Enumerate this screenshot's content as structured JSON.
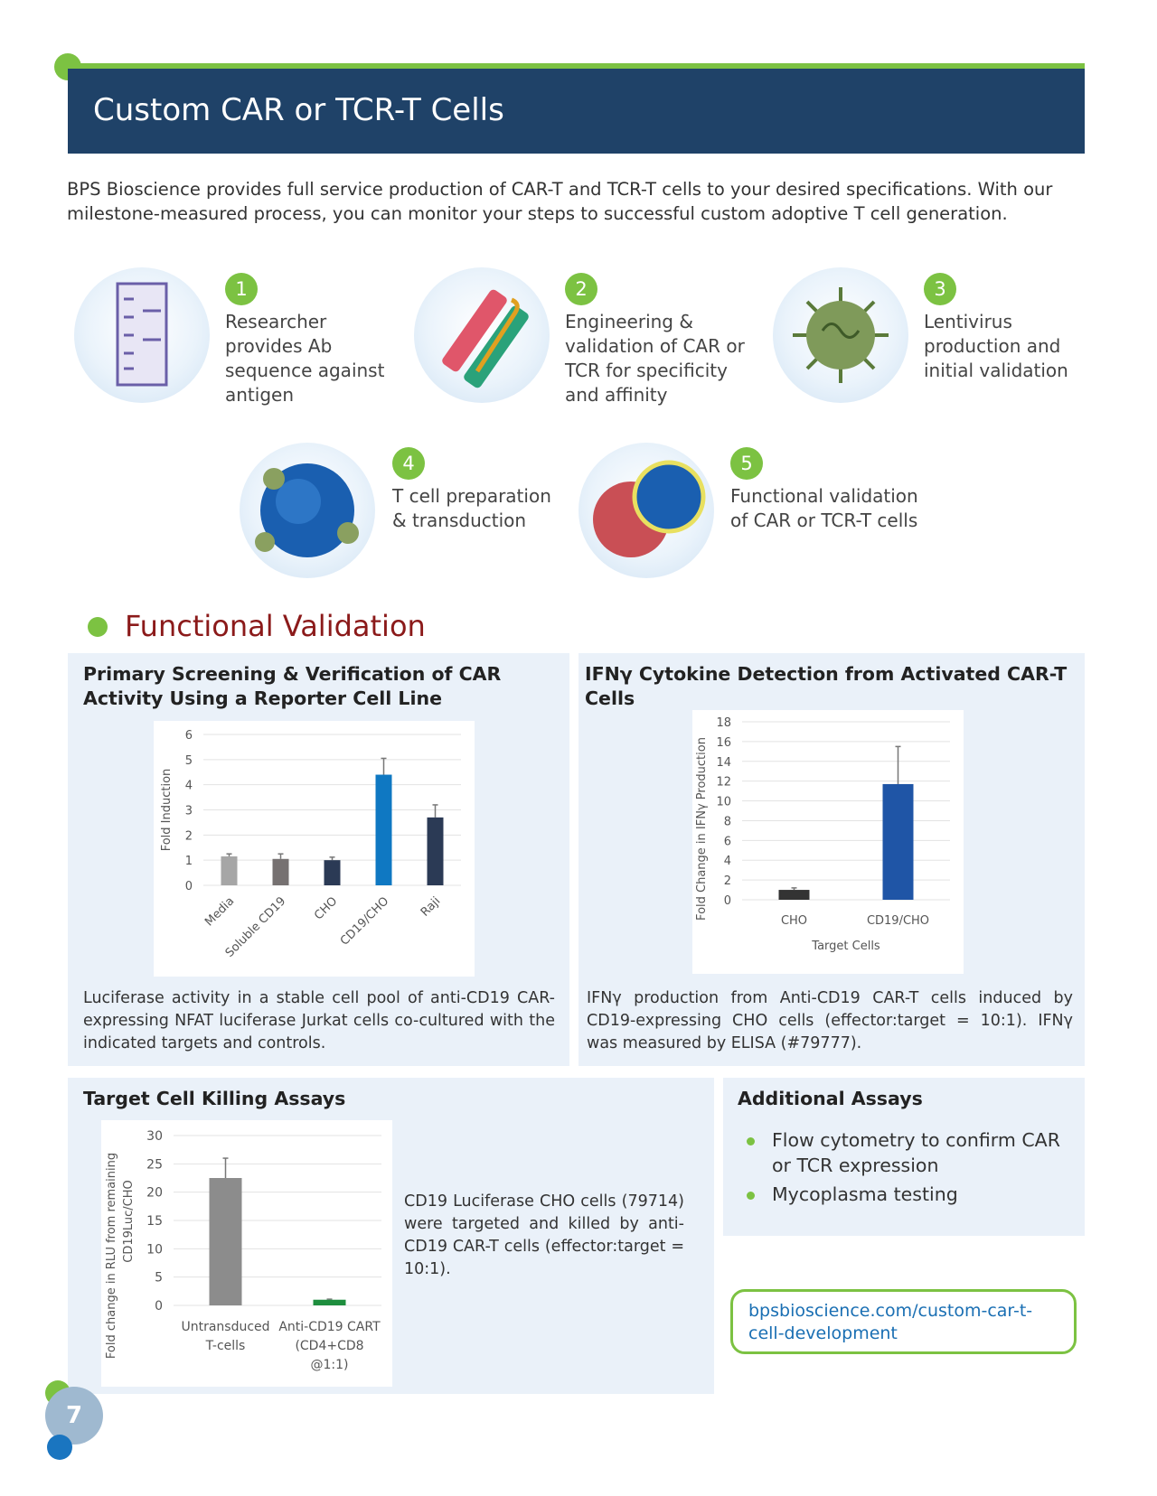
{
  "header": {
    "title": "Custom CAR or TCR-T Cells"
  },
  "intro": "BPS Bioscience provides full service production of CAR-T and TCR-T cells to your desired specifications. With our milestone-measured process, you can monitor your steps to successful custom adoptive T cell generation.",
  "steps": [
    {
      "num": "1",
      "text": "Researcher provides Ab sequence against antigen",
      "icon": "gel-icon"
    },
    {
      "num": "2",
      "text": "Engineering & validation of CAR or TCR for specificity and affinity",
      "icon": "receptor-icon"
    },
    {
      "num": "3",
      "text": "Lentivirus production and initial validation",
      "icon": "virus-icon"
    },
    {
      "num": "4",
      "text": "T cell preparation & transduction",
      "icon": "t-cell-icon"
    },
    {
      "num": "5",
      "text": "Functional validation of CAR or TCR-T cells",
      "icon": "cell-killing-icon"
    }
  ],
  "section_title": "Functional Validation",
  "panels": {
    "reporter": {
      "title": "Primary Screening & Verification of CAR Activity Using a Reporter Cell Line",
      "caption": "Luciferase activity in a stable cell pool of anti-CD19 CAR-expressing NFAT luciferase Jurkat cells co-cultured with the indicated targets and controls."
    },
    "ifng": {
      "title": "IFNγ Cytokine Detection from Activated CAR-T Cells",
      "caption": "IFNγ production from Anti-CD19 CAR-T cells induced by CD19-expressing CHO cells (effector:target = 10:1). IFNγ was measured by ELISA (#79777)."
    },
    "killing": {
      "title": "Target Cell Killing Assays",
      "caption": "CD19 Luciferase CHO cells (79714) were targeted and killed by anti-CD19 CAR-T cells (effector:target = 10:1)."
    },
    "additional": {
      "title": "Additional Assays",
      "items": [
        "Flow cytometry to confirm CAR or TCR expression",
        "Mycoplasma testing"
      ]
    }
  },
  "link": "bpsbioscience.com/custom-car-t-cell-development",
  "page_number": "7",
  "colors": {
    "header": "#1f4268",
    "accent_green": "#7cc242",
    "section_title": "#8b1a1a",
    "panel": "#eaf1f9"
  },
  "chart_data": [
    {
      "type": "bar",
      "title": "",
      "xlabel": "",
      "ylabel": "Fold Induction",
      "ylim": [
        0,
        6
      ],
      "yticks": [
        0,
        1,
        2,
        3,
        4,
        5,
        6
      ],
      "grid": true,
      "categories": [
        "Media",
        "Soluble CD19",
        "CHO",
        "CD19/CHO",
        "Raji"
      ],
      "values": [
        1.15,
        1.05,
        1.0,
        4.4,
        2.7
      ],
      "error_top": [
        1.25,
        1.25,
        1.12,
        5.05,
        3.2
      ],
      "colors": [
        "#a6a6a6",
        "#767171",
        "#2b3a55",
        "#0f78c2",
        "#2b3a55"
      ],
      "rotated_labels": true
    },
    {
      "type": "bar",
      "title": "",
      "xlabel": "Target Cells",
      "ylabel": "Fold Change in IFNγ Production",
      "ylim": [
        0,
        18
      ],
      "yticks": [
        0,
        2,
        4,
        6,
        8,
        10,
        12,
        14,
        16,
        18
      ],
      "grid": true,
      "categories": [
        "CHO",
        "CD19/CHO"
      ],
      "values": [
        1.0,
        11.7
      ],
      "error_top": [
        1.2,
        15.5
      ],
      "colors": [
        "#333333",
        "#1f55a6"
      ]
    },
    {
      "type": "bar",
      "title": "",
      "xlabel": "",
      "ylabel": "Fold change in RLU from remaining CD19Luc/CHO",
      "ylim": [
        0,
        30
      ],
      "yticks": [
        0,
        5,
        10,
        15,
        20,
        25,
        30
      ],
      "grid": true,
      "categories": [
        "Untransduced T-cells",
        "Anti-CD19 CART (CD4+CD8 @1:1)"
      ],
      "values": [
        22.5,
        1.0
      ],
      "error_top": [
        26,
        1.1
      ],
      "colors": [
        "#8c8c8c",
        "#1e8e3e"
      ]
    }
  ]
}
